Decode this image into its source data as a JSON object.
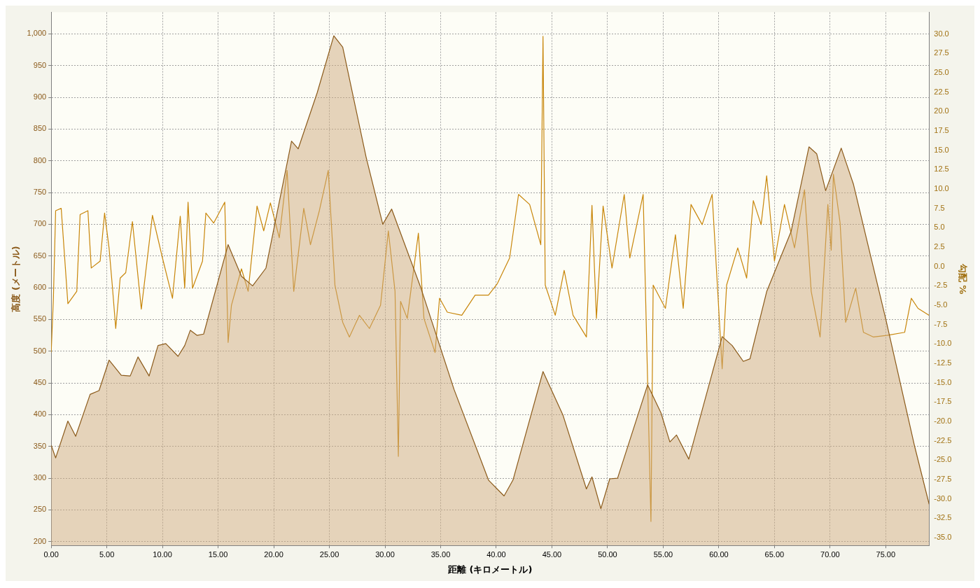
{
  "chart_data": {
    "type": "area",
    "xlabel": "距離 (キロメートル)",
    "ylabel": "高度 (メートル)",
    "y2label": "勾配 %",
    "grid": true,
    "legend": false,
    "marker": "none",
    "line_style": "solid",
    "xlim": [
      0,
      78.9
    ],
    "ylim": [
      194,
      1034
    ],
    "y2lim": [
      -36,
      32.8
    ],
    "xticks": [
      {
        "value": 0,
        "label": "0.00"
      },
      {
        "value": 5,
        "label": "5.00"
      },
      {
        "value": 10,
        "label": "10.00"
      },
      {
        "value": 15,
        "label": "15.00"
      },
      {
        "value": 20,
        "label": "20.00"
      },
      {
        "value": 25,
        "label": "25.00"
      },
      {
        "value": 30,
        "label": "30.00"
      },
      {
        "value": 35,
        "label": "35.00"
      },
      {
        "value": 40,
        "label": "40.00"
      },
      {
        "value": 45,
        "label": "45.00"
      },
      {
        "value": 50,
        "label": "50.00"
      },
      {
        "value": 55,
        "label": "55.00"
      },
      {
        "value": 60,
        "label": "60.00"
      },
      {
        "value": 65,
        "label": "65.00"
      },
      {
        "value": 70,
        "label": "70.00"
      },
      {
        "value": 75,
        "label": "75.00"
      }
    ],
    "yticks": [
      200,
      250,
      300,
      350,
      400,
      450,
      500,
      550,
      600,
      650,
      700,
      750,
      800,
      850,
      900,
      950,
      {
        "value": 1000,
        "label": "1,000"
      }
    ],
    "y2ticks": [
      {
        "value": -35,
        "label": "-35.0"
      },
      {
        "value": -32.5,
        "label": "-32.5"
      },
      {
        "value": -30,
        "label": "-30.0"
      },
      {
        "value": -27.5,
        "label": "-27.5"
      },
      {
        "value": -25,
        "label": "-25.0"
      },
      {
        "value": -22.5,
        "label": "-22.5"
      },
      {
        "value": -20,
        "label": "-20.0"
      },
      {
        "value": -17.5,
        "label": "-17.5"
      },
      {
        "value": -15,
        "label": "-15.0"
      },
      {
        "value": -12.5,
        "label": "-12.5"
      },
      {
        "value": -10,
        "label": "-10.0"
      },
      {
        "value": -7.5,
        "label": "-7.5"
      },
      {
        "value": -5,
        "label": "-5.0"
      },
      {
        "value": -2.5,
        "label": "-2.5"
      },
      {
        "value": 0,
        "label": "0.0"
      },
      {
        "value": 2.5,
        "label": "2.5"
      },
      {
        "value": 5,
        "label": "5.0"
      },
      {
        "value": 7.5,
        "label": "7.5"
      },
      {
        "value": 10,
        "label": "10.0"
      },
      {
        "value": 12.5,
        "label": "12.5"
      },
      {
        "value": 15,
        "label": "15.0"
      },
      {
        "value": 17.5,
        "label": "17.5"
      },
      {
        "value": 20,
        "label": "20.0"
      },
      {
        "value": 22.5,
        "label": "22.5"
      },
      {
        "value": 25,
        "label": "25.0"
      },
      {
        "value": 27.5,
        "label": "27.5"
      },
      {
        "value": 30,
        "label": "30.0"
      }
    ],
    "series": [
      {
        "type": "area",
        "color": "#8b5a1a",
        "x": [
          0,
          0.4,
          1.5,
          2.2,
          3.5,
          4.3,
          5.2,
          6.3,
          7.1,
          7.8,
          8.8,
          9.6,
          10.3,
          11.4,
          12.0,
          12.5,
          13.1,
          13.7,
          15.9,
          17.1,
          18.1,
          19.3,
          21.6,
          22.2,
          23.9,
          25.4,
          26.2,
          28.3,
          29.8,
          30.6,
          33.2,
          36.2,
          39.3,
          40.7,
          41.5,
          44.2,
          46.0,
          48.1,
          48.6,
          49.4,
          50.2,
          50.9,
          53.6,
          54.8,
          55.6,
          56.2,
          57.3,
          60.3,
          61.2,
          62.2,
          62.8,
          64.3,
          66.5,
          68.1,
          68.8,
          69.6,
          71.0,
          72.1,
          75.0,
          77.6,
          78.9
        ],
        "values": [
          352,
          332,
          390,
          366,
          432,
          438,
          486,
          462,
          461,
          491,
          461,
          509,
          512,
          492,
          509,
          533,
          525,
          527,
          668,
          618,
          603,
          631,
          831,
          819,
          907,
          997,
          979,
          806,
          700,
          724,
          601,
          440,
          297,
          272,
          297,
          468,
          399,
          283,
          302,
          252,
          299,
          300,
          447,
          403,
          357,
          368,
          330,
          523,
          509,
          484,
          488,
          594,
          689,
          822,
          811,
          753,
          820,
          763,
          551,
          350,
          259
        ]
      },
      {
        "type": "line",
        "axis": "y2",
        "color": "#c8860a",
        "x": [
          0,
          0.2,
          0.4,
          0.9,
          1.5,
          2.3,
          2.6,
          3.3,
          3.6,
          4.4,
          4.8,
          5.2,
          5.5,
          5.8,
          6.2,
          6.7,
          7.3,
          8.1,
          9.1,
          10.0,
          10.9,
          11.6,
          12.0,
          12.3,
          12.7,
          13.6,
          13.9,
          14.6,
          15.6,
          15.9,
          16.2,
          17.1,
          17.7,
          18.5,
          19.1,
          19.7,
          20.5,
          21.2,
          21.8,
          22.7,
          23.3,
          24.1,
          24.9,
          25.5,
          26.2,
          26.8,
          27.7,
          28.6,
          29.6,
          30.3,
          30.9,
          31.2,
          31.4,
          32.0,
          33.0,
          33.5,
          34.5,
          34.9,
          35.6,
          36.9,
          38.1,
          39.3,
          40.1,
          41.2,
          42.0,
          43.0,
          44.0,
          44.2,
          44.4,
          45.3,
          46.1,
          46.9,
          48.1,
          48.6,
          49.0,
          49.6,
          50.4,
          51.5,
          52.0,
          53.2,
          53.9,
          54.1,
          55.2,
          56.1,
          56.8,
          57.5,
          58.5,
          59.4,
          60.3,
          60.7,
          61.7,
          62.5,
          63.1,
          63.8,
          64.3,
          65.0,
          65.9,
          66.8,
          67.7,
          68.3,
          69.1,
          69.8,
          70.1,
          70.3,
          70.9,
          71.4,
          72.3,
          73.0,
          73.9,
          75.1,
          76.7,
          77.3,
          77.9,
          78.9
        ],
        "values": [
          -11.1,
          -4.1,
          7.2,
          7.5,
          -4.8,
          -3.2,
          6.7,
          7.2,
          -0.2,
          0.7,
          6.9,
          2.4,
          -2.6,
          -8.0,
          -1.5,
          -0.8,
          5.8,
          -5.5,
          6.6,
          1.1,
          -4.1,
          6.5,
          -2.8,
          8.3,
          -2.8,
          0.7,
          6.9,
          5.6,
          8.3,
          -9.8,
          -5.0,
          -0.3,
          -3.2,
          7.8,
          4.6,
          8.2,
          3.7,
          12.4,
          -3.2,
          7.5,
          2.8,
          7.2,
          12.4,
          -2.4,
          -7.2,
          -9.1,
          -6.3,
          -8.0,
          -5.0,
          4.6,
          -3.2,
          -24.5,
          -4.5,
          -6.7,
          4.3,
          -6.7,
          -11.1,
          -4.1,
          -5.9,
          -6.3,
          -3.7,
          -3.7,
          -2.2,
          1.1,
          9.3,
          8.0,
          2.8,
          29.7,
          -2.4,
          -6.3,
          -0.5,
          -6.3,
          -9.1,
          7.9,
          -6.7,
          7.8,
          -0.2,
          9.3,
          1.1,
          9.3,
          -32.9,
          -2.4,
          -5.4,
          4.1,
          -5.4,
          8.0,
          5.4,
          9.3,
          -13.2,
          -2.4,
          2.4,
          -1.5,
          8.5,
          5.4,
          11.7,
          0.7,
          8.0,
          2.4,
          9.9,
          -3.2,
          -9.1,
          8.0,
          2.1,
          11.9,
          5.6,
          -7.2,
          -2.8,
          -8.5,
          -9.1,
          -8.9,
          -8.5,
          -4.1,
          -5.4,
          -6.3
        ]
      }
    ]
  }
}
